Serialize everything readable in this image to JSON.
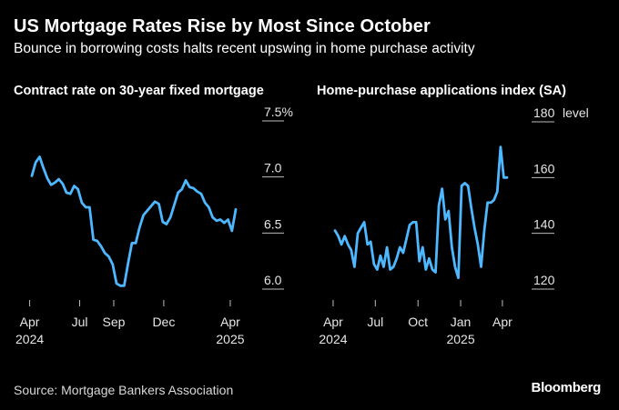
{
  "title": "US Mortgage Rates Rise by Most Since October",
  "subtitle": "Bounce in borrowing costs halts recent upswing in home purchase activity",
  "source": "Source: Mortgage Bankers Association",
  "brand": "Bloomberg",
  "chart_data": [
    {
      "type": "line",
      "title": "Contract rate on 30-year fixed mortgage",
      "y_ticks": [
        "7.5%",
        "7.0",
        "6.5",
        "6.0"
      ],
      "y_tick_values": [
        7.5,
        7.0,
        6.5,
        6.0
      ],
      "ylim": [
        5.9,
        7.55
      ],
      "x_ticks": [
        {
          "label": "Apr",
          "sub": "2024",
          "date": "2024-04-01"
        },
        {
          "label": "Jul",
          "sub": "",
          "date": "2024-07-01"
        },
        {
          "label": "Sep",
          "sub": "",
          "date": "2024-09-01"
        },
        {
          "label": "Dec",
          "sub": "",
          "date": "2024-12-01"
        },
        {
          "label": "Apr",
          "sub": "2025",
          "date": "2025-04-01"
        }
      ],
      "color": "#4db8ff",
      "series": [
        {
          "x": [
            "2024-04-05",
            "2024-04-12",
            "2024-04-19",
            "2024-04-26",
            "2024-05-03",
            "2024-05-10",
            "2024-05-17",
            "2024-05-24",
            "2024-05-31",
            "2024-06-07",
            "2024-06-14",
            "2024-06-21",
            "2024-06-28",
            "2024-07-05",
            "2024-07-12",
            "2024-07-19",
            "2024-07-26",
            "2024-08-02",
            "2024-08-09",
            "2024-08-16",
            "2024-08-23",
            "2024-08-30",
            "2024-09-06",
            "2024-09-13",
            "2024-09-20",
            "2024-09-27",
            "2024-10-04",
            "2024-10-11",
            "2024-10-18",
            "2024-10-25",
            "2024-11-01",
            "2024-11-08",
            "2024-11-15",
            "2024-11-22",
            "2024-11-29",
            "2024-12-06",
            "2024-12-13",
            "2024-12-20",
            "2024-12-27",
            "2025-01-03",
            "2025-01-10",
            "2025-01-17",
            "2025-01-24",
            "2025-01-31",
            "2025-02-07",
            "2025-02-14",
            "2025-02-21",
            "2025-02-28",
            "2025-03-07",
            "2025-03-14",
            "2025-03-21",
            "2025-03-28",
            "2025-04-04",
            "2025-04-11"
          ],
          "values": [
            7.01,
            7.13,
            7.18,
            7.08,
            6.99,
            6.93,
            6.95,
            6.98,
            6.94,
            6.86,
            6.85,
            6.92,
            6.89,
            6.77,
            6.73,
            6.73,
            6.44,
            6.43,
            6.38,
            6.32,
            6.29,
            6.22,
            6.05,
            6.03,
            6.03,
            6.23,
            6.41,
            6.41,
            6.55,
            6.66,
            6.7,
            6.74,
            6.78,
            6.76,
            6.6,
            6.58,
            6.64,
            6.75,
            6.86,
            6.89,
            6.97,
            6.91,
            6.9,
            6.87,
            6.85,
            6.77,
            6.73,
            6.64,
            6.61,
            6.62,
            6.59,
            6.62,
            6.52,
            6.71
          ]
        }
      ]
    },
    {
      "type": "line",
      "title": "Home-purchase applications index (SA)",
      "y_ticks": [
        "180",
        "160",
        "140",
        "120"
      ],
      "y_tick_values": [
        180,
        160,
        140,
        120
      ],
      "y_unit": "level",
      "ylim": [
        117,
        181
      ],
      "x_ticks": [
        {
          "label": "Apr",
          "sub": "2024",
          "date": "2024-04-01"
        },
        {
          "label": "Jul",
          "sub": "",
          "date": "2024-07-01"
        },
        {
          "label": "Oct",
          "sub": "",
          "date": "2024-10-01"
        },
        {
          "label": "Jan",
          "sub": "2025",
          "date": "2025-01-01"
        },
        {
          "label": "Apr",
          "sub": "",
          "date": "2025-04-01"
        }
      ],
      "color": "#4db8ff",
      "series": [
        {
          "x": [
            "2024-04-05",
            "2024-04-12",
            "2024-04-19",
            "2024-04-26",
            "2024-05-03",
            "2024-05-10",
            "2024-05-17",
            "2024-05-24",
            "2024-05-31",
            "2024-06-07",
            "2024-06-14",
            "2024-06-21",
            "2024-06-28",
            "2024-07-05",
            "2024-07-12",
            "2024-07-19",
            "2024-07-26",
            "2024-08-02",
            "2024-08-09",
            "2024-08-16",
            "2024-08-23",
            "2024-08-30",
            "2024-09-06",
            "2024-09-13",
            "2024-09-20",
            "2024-09-27",
            "2024-10-04",
            "2024-10-11",
            "2024-10-18",
            "2024-10-25",
            "2024-11-01",
            "2024-11-08",
            "2024-11-15",
            "2024-11-22",
            "2024-11-29",
            "2024-12-06",
            "2024-12-13",
            "2024-12-20",
            "2024-12-27",
            "2025-01-03",
            "2025-01-10",
            "2025-01-17",
            "2025-01-24",
            "2025-01-31",
            "2025-02-07",
            "2025-02-14",
            "2025-02-21",
            "2025-02-28",
            "2025-03-07",
            "2025-03-14",
            "2025-03-21",
            "2025-03-28",
            "2025-04-04",
            "2025-04-11"
          ],
          "values": [
            141,
            139,
            136,
            139,
            136,
            134,
            128,
            140,
            142,
            144,
            136,
            137,
            129,
            127,
            132,
            128,
            135,
            127,
            128,
            131,
            135,
            133,
            138,
            143,
            144,
            144,
            130,
            135,
            127,
            131,
            127,
            126,
            150,
            156,
            145,
            148,
            135,
            128,
            124,
            157,
            158,
            157,
            149,
            142,
            136,
            128,
            141,
            151,
            151,
            152,
            155,
            171,
            160,
            160
          ]
        }
      ]
    }
  ]
}
